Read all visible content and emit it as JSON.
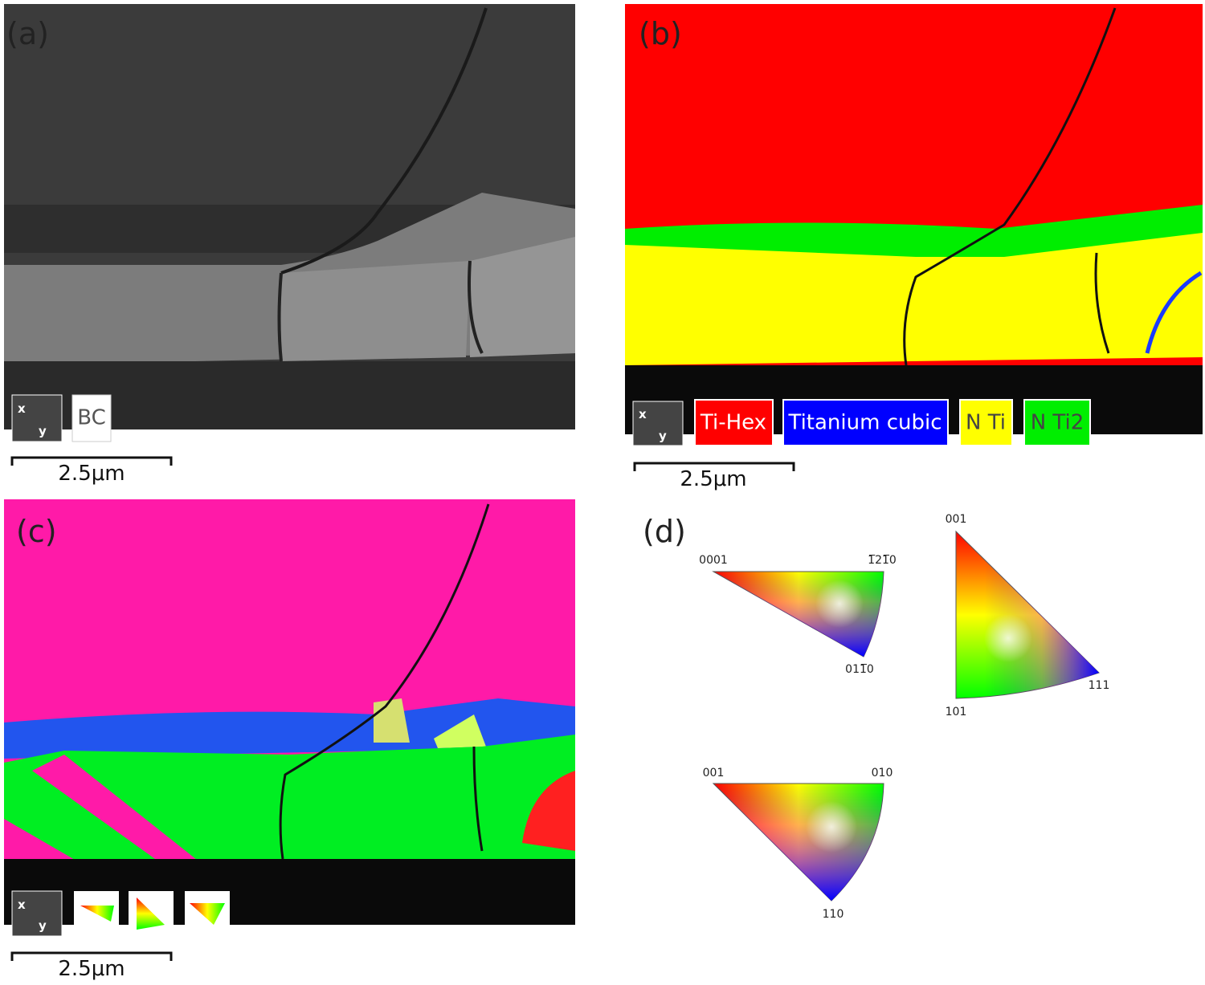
{
  "panels": [
    {
      "label": "(a)",
      "legend": [
        "BC"
      ],
      "scale_bar": "2.5μm"
    },
    {
      "label": "(b)",
      "legend": [
        "Ti-Hex",
        "Titanium cubic",
        "N Ti",
        "N Ti2"
      ],
      "scale_bar": "2.5μm"
    },
    {
      "label": "(c)",
      "scale_bar": "2.5μm"
    },
    {
      "label": "(d)"
    }
  ],
  "ipf_keys": [
    {
      "corners": [
        "0001",
        "1̅21̅0",
        "011̅0"
      ]
    },
    {
      "corners": [
        "001",
        "101",
        "111"
      ]
    },
    {
      "corners": [
        "001",
        "010",
        "110"
      ]
    }
  ],
  "axis_icon": [
    "x",
    "y"
  ]
}
